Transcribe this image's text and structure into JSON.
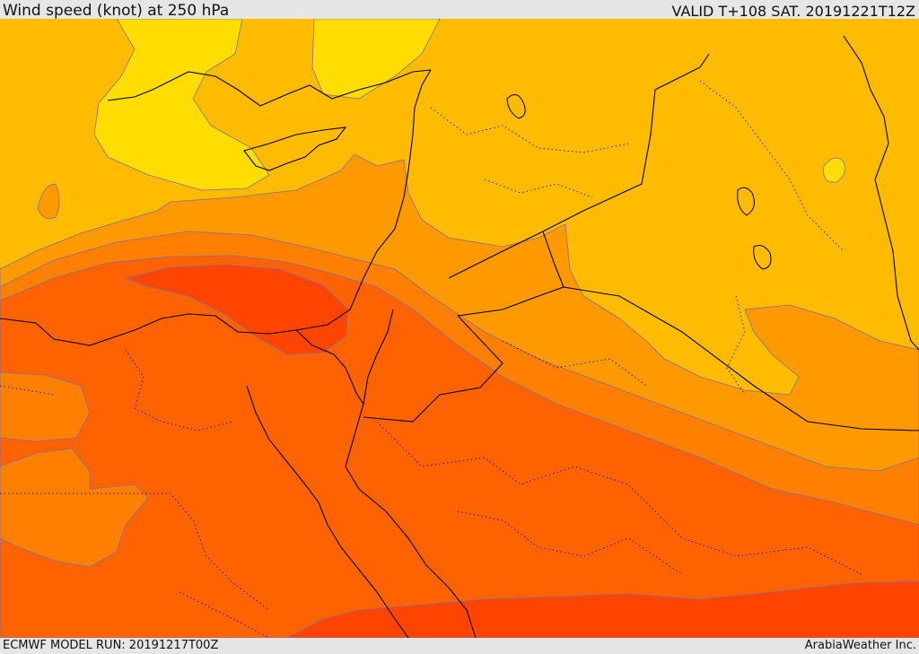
{
  "header": {
    "title": "Wind speed (knot) at 250 hPa",
    "valid_time": "VALID T+108 SAT. 20191221T12Z"
  },
  "footer": {
    "model_run": "ECMWF MODEL RUN: 20191217T00Z",
    "credit": "ArabiaWeather Inc."
  },
  "colors": {
    "band_lightest": "#ffdd00",
    "band_light": "#ffbb00",
    "band_mid": "#ff9900",
    "band_orange": "#ff7f00",
    "band_dark": "#ff6200",
    "band_darkest": "#ff4400",
    "isoline": "#7f6fa0",
    "coastline": "#000000"
  }
}
